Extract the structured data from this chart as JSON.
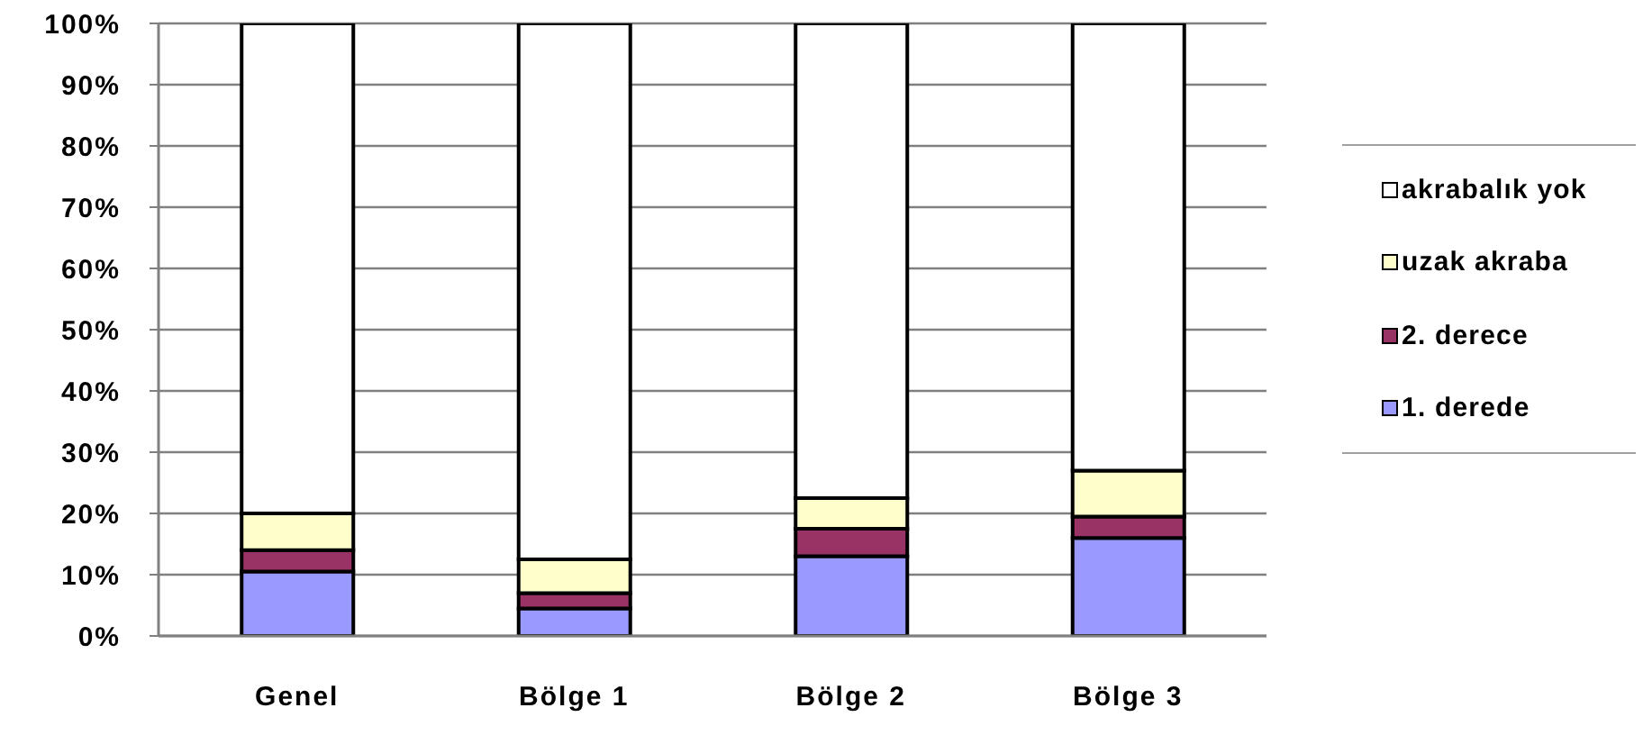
{
  "chart_data": {
    "type": "bar",
    "categories": [
      "Genel",
      "Bölge 1",
      "Bölge 2",
      "Bölge 3"
    ],
    "stacked": true,
    "series": [
      {
        "name": "1. derede",
        "color": "#9999ff",
        "values": [
          10.5,
          4.5,
          13,
          16
        ]
      },
      {
        "name": "2. derece",
        "color": "#993366",
        "values": [
          3.5,
          2.5,
          4.5,
          3.5
        ]
      },
      {
        "name": "uzak akraba",
        "color": "#ffffcc",
        "values": [
          6,
          5.5,
          5,
          7.5
        ]
      },
      {
        "name": "akrabalık yok",
        "color": "#ffffff",
        "values": [
          80,
          87.5,
          77.5,
          73
        ]
      }
    ],
    "ylim": [
      0,
      100
    ],
    "yticks": [
      {
        "value": 0,
        "label": "0%"
      },
      {
        "value": 10,
        "label": "10%"
      },
      {
        "value": 20,
        "label": "20%"
      },
      {
        "value": 30,
        "label": "30%"
      },
      {
        "value": 40,
        "label": "40%"
      },
      {
        "value": 50,
        "label": "50%"
      },
      {
        "value": 60,
        "label": "60%"
      },
      {
        "value": 70,
        "label": "70%"
      },
      {
        "value": 80,
        "label": "80%"
      },
      {
        "value": 90,
        "label": "90%"
      },
      {
        "value": 100,
        "label": "100%"
      }
    ],
    "grid": "y",
    "legend": "right"
  }
}
